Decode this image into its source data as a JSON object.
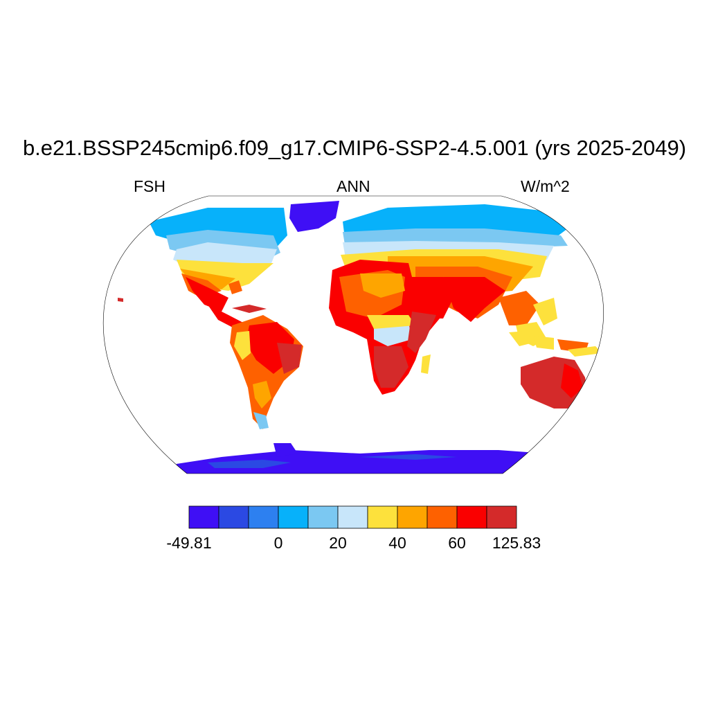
{
  "title": "b.e21.BSSP245cmip6.f09_g17.CMIP6-SSP2-4.5.001 (yrs 2025-2049)",
  "variable": "FSH",
  "season": "ANN",
  "units": "W/m^2",
  "colorbar": {
    "colors": [
      "#3f0ff5",
      "#2b49e3",
      "#2d80f0",
      "#07b1fa",
      "#7bc8f2",
      "#c8e6fa",
      "#fde13c",
      "#fea500",
      "#fe6100",
      "#fa0000",
      "#d42a2a"
    ],
    "tick_labels": [
      "-49.81",
      "0",
      "20",
      "40",
      "60",
      "125.83"
    ]
  },
  "map": {
    "projection": "Robinson",
    "ocean_color": "#ffffff",
    "coastline_color": "#000000"
  }
}
